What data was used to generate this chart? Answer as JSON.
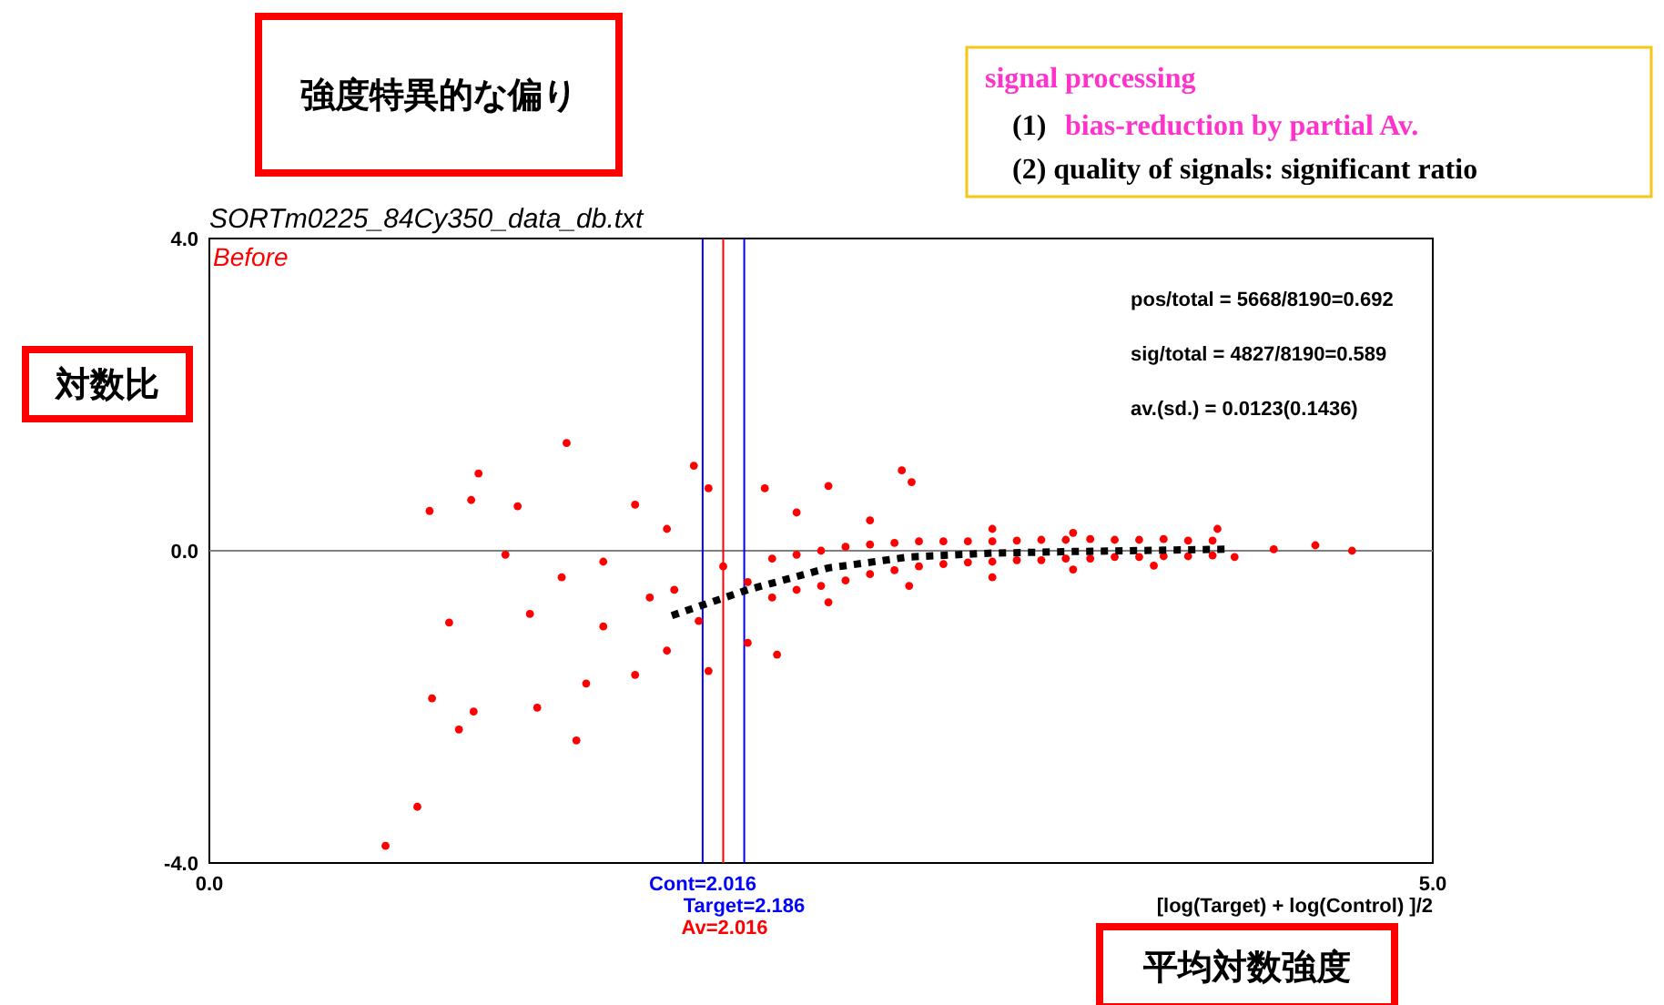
{
  "chart_data": {
    "type": "scatter",
    "title": "SORTm0225_84Cy350_data_db.txt",
    "xlabel": "[log(Target) + log(Control) ]/2",
    "ylabel": "対数比",
    "xlim": [
      0,
      5
    ],
    "ylim": [
      -4,
      4
    ],
    "xticks": [
      {
        "value": 0,
        "label": "0.0"
      },
      {
        "value": 5,
        "label": "5.0"
      }
    ],
    "yticks": [
      {
        "value": -4,
        "label": "-4.0"
      },
      {
        "value": 0,
        "label": "0.0"
      },
      {
        "value": 4,
        "label": "4.0"
      }
    ],
    "grid": false,
    "ref_lines": [
      {
        "axis": "y",
        "value": 0,
        "label": null,
        "color": "#808080"
      },
      {
        "axis": "x",
        "value": 2.016,
        "label": "Cont=2.016",
        "color": "#0000ff"
      },
      {
        "axis": "x",
        "value": 2.186,
        "label": "Target=2.186",
        "color": "#0000ff"
      },
      {
        "axis": "x",
        "value": 2.1,
        "label": null,
        "color": "#ff0000"
      }
    ],
    "annotations": [
      "Before",
      "pos/total = 5668/8190=0.692",
      "sig/total = 4827/8190=0.589",
      "av.(sd.) = 0.0123(0.1436)",
      "強度特異的な偏り",
      "平均対数強度",
      "signal processing",
      "(1)",
      "bias-reduction by partial Av.",
      "(2) quality of signals: significant ratio",
      "Av=2.016"
    ],
    "series": [
      {
        "color": "#ff0000",
        "marker": "circle",
        "x": [
          1.46,
          1.1,
          0.9,
          1.07,
          1.26,
          1.98,
          2.83,
          2.53,
          2.87,
          1.21,
          0.98,
          0.91,
          1.08,
          1.02,
          0.85,
          0.72,
          1.5,
          1.31,
          1.34,
          1.54,
          1.61,
          1.74,
          1.87,
          2.04,
          2.32,
          2.2,
          1.74,
          1.87,
          2.04,
          2.27,
          2.4,
          2.7,
          3.2,
          3.53,
          4.12,
          4.52,
          4.67,
          4.35,
          2.53,
          2.86,
          3.2,
          3.53,
          3.86,
          1.61,
          1.44,
          4.19,
          2.3,
          2.4,
          2.5,
          2.6,
          2.7,
          2.8,
          2.9,
          3.0,
          3.1,
          3.2,
          3.3,
          3.4,
          3.5,
          3.6,
          3.7,
          3.8,
          3.9,
          4.0,
          4.1,
          2.3,
          2.4,
          2.5,
          2.6,
          2.7,
          2.8,
          2.9,
          3.0,
          3.1,
          3.2,
          3.3,
          3.4,
          3.5,
          3.6,
          3.7,
          3.8,
          3.9,
          4.0,
          4.1,
          2.1,
          2.2,
          1.9,
          2.0,
          1.8
        ],
        "values": [
          1.38,
          0.99,
          0.51,
          0.65,
          0.57,
          1.09,
          1.03,
          0.83,
          0.88,
          -0.05,
          -0.92,
          -1.89,
          -2.06,
          -2.29,
          -3.28,
          -3.78,
          -2.43,
          -0.81,
          -2.01,
          -1.7,
          -0.97,
          -1.59,
          -1.28,
          -1.54,
          -1.33,
          -1.18,
          0.59,
          0.28,
          0.8,
          0.8,
          0.49,
          0.39,
          0.28,
          0.23,
          0.28,
          0.07,
          0.0,
          0.02,
          -0.66,
          -0.45,
          -0.34,
          -0.24,
          -0.19,
          -0.14,
          -0.34,
          -0.08,
          -0.1,
          -0.05,
          0.0,
          0.05,
          0.08,
          0.1,
          0.12,
          0.12,
          0.12,
          0.12,
          0.13,
          0.14,
          0.14,
          0.15,
          0.14,
          0.14,
          0.15,
          0.13,
          0.13,
          -0.6,
          -0.5,
          -0.45,
          -0.38,
          -0.3,
          -0.25,
          -0.2,
          -0.17,
          -0.15,
          -0.14,
          -0.12,
          -0.12,
          -0.1,
          -0.1,
          -0.08,
          -0.08,
          -0.07,
          -0.07,
          -0.06,
          -0.2,
          -0.4,
          -0.5,
          -0.9,
          -0.6
        ]
      },
      {
        "type": "line",
        "color": "#000000",
        "line_style": "dotted",
        "x": [
          1.89,
          2.2,
          2.53,
          2.86,
          3.2,
          3.53,
          4.16
        ],
        "values": [
          -0.83,
          -0.5,
          -0.22,
          -0.08,
          -0.03,
          -0.01,
          0.02
        ]
      }
    ]
  }
}
